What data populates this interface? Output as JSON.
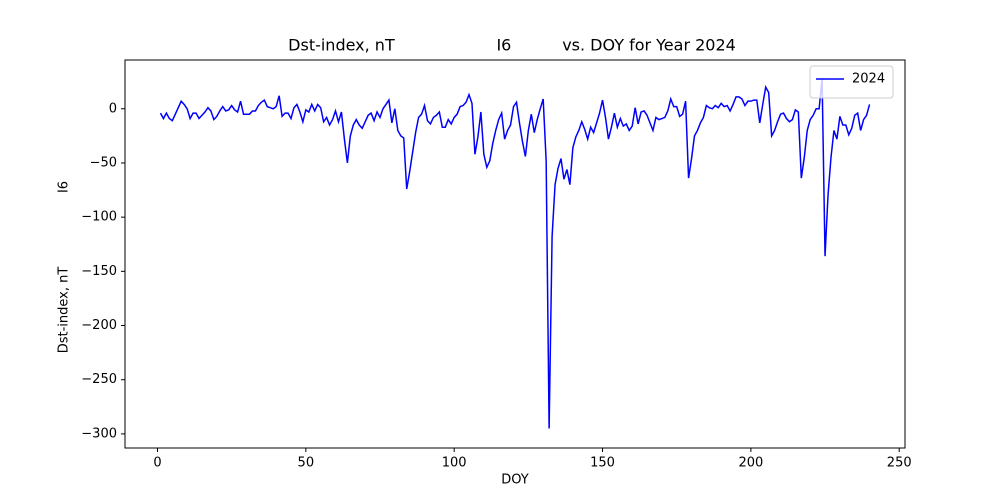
{
  "chart_data": {
    "type": "line",
    "title": "Dst-index, nT                    I6          vs. DOY for Year 2024",
    "xlabel": "DOY",
    "ylabel": [
      "I6",
      "Dst-index, nT"
    ],
    "x": [
      1,
      2,
      3,
      4,
      5,
      6,
      7,
      8,
      9,
      10,
      11,
      12,
      13,
      14,
      15,
      16,
      17,
      18,
      19,
      20,
      21,
      22,
      23,
      24,
      25,
      26,
      27,
      28,
      29,
      30,
      31,
      32,
      33,
      34,
      35,
      36,
      37,
      38,
      39,
      40,
      41,
      42,
      43,
      44,
      45,
      46,
      47,
      48,
      49,
      50,
      51,
      52,
      53,
      54,
      55,
      56,
      57,
      58,
      59,
      60,
      61,
      62,
      63,
      64,
      65,
      66,
      67,
      68,
      69,
      70,
      71,
      72,
      73,
      74,
      75,
      76,
      77,
      78,
      79,
      80,
      81,
      82,
      83,
      84,
      85,
      86,
      87,
      88,
      89,
      90,
      91,
      92,
      93,
      94,
      95,
      96,
      97,
      98,
      99,
      100,
      101,
      102,
      103,
      104,
      105,
      106,
      107,
      108,
      109,
      110,
      111,
      112,
      113,
      114,
      115,
      116,
      117,
      118,
      119,
      120,
      121,
      122,
      123,
      124,
      125,
      126,
      127,
      128,
      129,
      130,
      131,
      132,
      133,
      134,
      135,
      136,
      137,
      138,
      139,
      140,
      141,
      142,
      143,
      144,
      145,
      146,
      147,
      148,
      149,
      150,
      151,
      152,
      153,
      154,
      155,
      156,
      157,
      158,
      159,
      160,
      161,
      162,
      163,
      164,
      165,
      166,
      167,
      168,
      169,
      170,
      171,
      172,
      173,
      174,
      175,
      176,
      177,
      178,
      179,
      180,
      181,
      182,
      183,
      184,
      185,
      186,
      187,
      188,
      189,
      190,
      191,
      192,
      193,
      194,
      195,
      196,
      197,
      198,
      199,
      200,
      201,
      202,
      203,
      204,
      205,
      206,
      207,
      208,
      209,
      210,
      211,
      212,
      213,
      214,
      215,
      216,
      217,
      218,
      219,
      220,
      221,
      222,
      223,
      224,
      225,
      226,
      227,
      228,
      229,
      230,
      231,
      232,
      233,
      234,
      235,
      236,
      237,
      238,
      239,
      240
    ],
    "series": [
      {
        "name": "2024",
        "color": "#0000ff",
        "values": [
          -4,
          -9,
          -4,
          -9,
          -11,
          -5,
          1,
          7,
          4,
          0,
          -9,
          -4,
          -4,
          -9,
          -6,
          -3,
          1,
          -2,
          -10,
          -7,
          -2,
          2,
          -2,
          -1,
          3,
          -1,
          -3,
          7,
          -5,
          -5,
          -5,
          -2,
          -2,
          3,
          6,
          8,
          2,
          1,
          0,
          2,
          12,
          -7,
          -4,
          -4,
          -9,
          1,
          4,
          -3,
          -12,
          -1,
          -3,
          4,
          -2,
          4,
          1,
          -12,
          -8,
          -15,
          -10,
          -2,
          -12,
          -3,
          -28,
          -50,
          -25,
          -15,
          -10,
          -15,
          -18,
          -12,
          -6,
          -4,
          -11,
          -3,
          -8,
          0,
          4,
          8,
          -13,
          0,
          -20,
          -25,
          -27,
          -74,
          -58,
          -40,
          -22,
          -8,
          -5,
          3,
          -11,
          -14,
          -8,
          -6,
          -3,
          -17,
          -17,
          -10,
          -14,
          -8,
          -5,
          2,
          3,
          6,
          13,
          5,
          -42,
          -26,
          -3,
          -42,
          -54,
          -48,
          -32,
          -20,
          -10,
          -4,
          -28,
          -20,
          -15,
          2,
          6,
          -13,
          -30,
          -44,
          -20,
          -5,
          -22,
          -10,
          0,
          9,
          -48,
          -295,
          -118,
          -70,
          -55,
          -46,
          -65,
          -56,
          -70,
          -36,
          -26,
          -20,
          -12,
          -19,
          -28,
          -17,
          -22,
          -13,
          -4,
          8,
          -8,
          -28,
          -17,
          -4,
          -17,
          -9,
          -16,
          -14,
          -20,
          -16,
          1,
          -14,
          -3,
          -2,
          -6,
          -13,
          -20,
          -8,
          -10,
          -9,
          -8,
          -2,
          9,
          2,
          2,
          -7,
          -5,
          7,
          -64,
          -46,
          -25,
          -20,
          -13,
          -8,
          3,
          1,
          0,
          3,
          1,
          5,
          2,
          3,
          -2,
          4,
          11,
          11,
          9,
          3,
          7,
          7,
          8,
          8,
          -13,
          4,
          20,
          15,
          -25,
          -20,
          -12,
          -5,
          -4,
          -9,
          -12,
          -10,
          -1,
          -3,
          -64,
          -45,
          -20,
          -10,
          -6,
          0,
          0,
          28,
          -136,
          -80,
          -45,
          -20,
          -28,
          -7,
          -15,
          -15,
          -24,
          -18,
          -6,
          -4,
          -20,
          -10,
          -6,
          4
        ]
      }
    ],
    "xlim": [
      -10.95,
      251.95
    ],
    "ylim": [
      -313,
      45
    ],
    "xticks": [
      0,
      50,
      100,
      150,
      200,
      250
    ],
    "yticks": [
      {
        "value": -300,
        "label": "−300"
      },
      {
        "value": -250,
        "label": "−250"
      },
      {
        "value": -200,
        "label": "−200"
      },
      {
        "value": -150,
        "label": "−150"
      },
      {
        "value": -100,
        "label": "−100"
      },
      {
        "value": -50,
        "label": "−50"
      },
      0
    ],
    "grid": false,
    "legend": "upper right"
  }
}
